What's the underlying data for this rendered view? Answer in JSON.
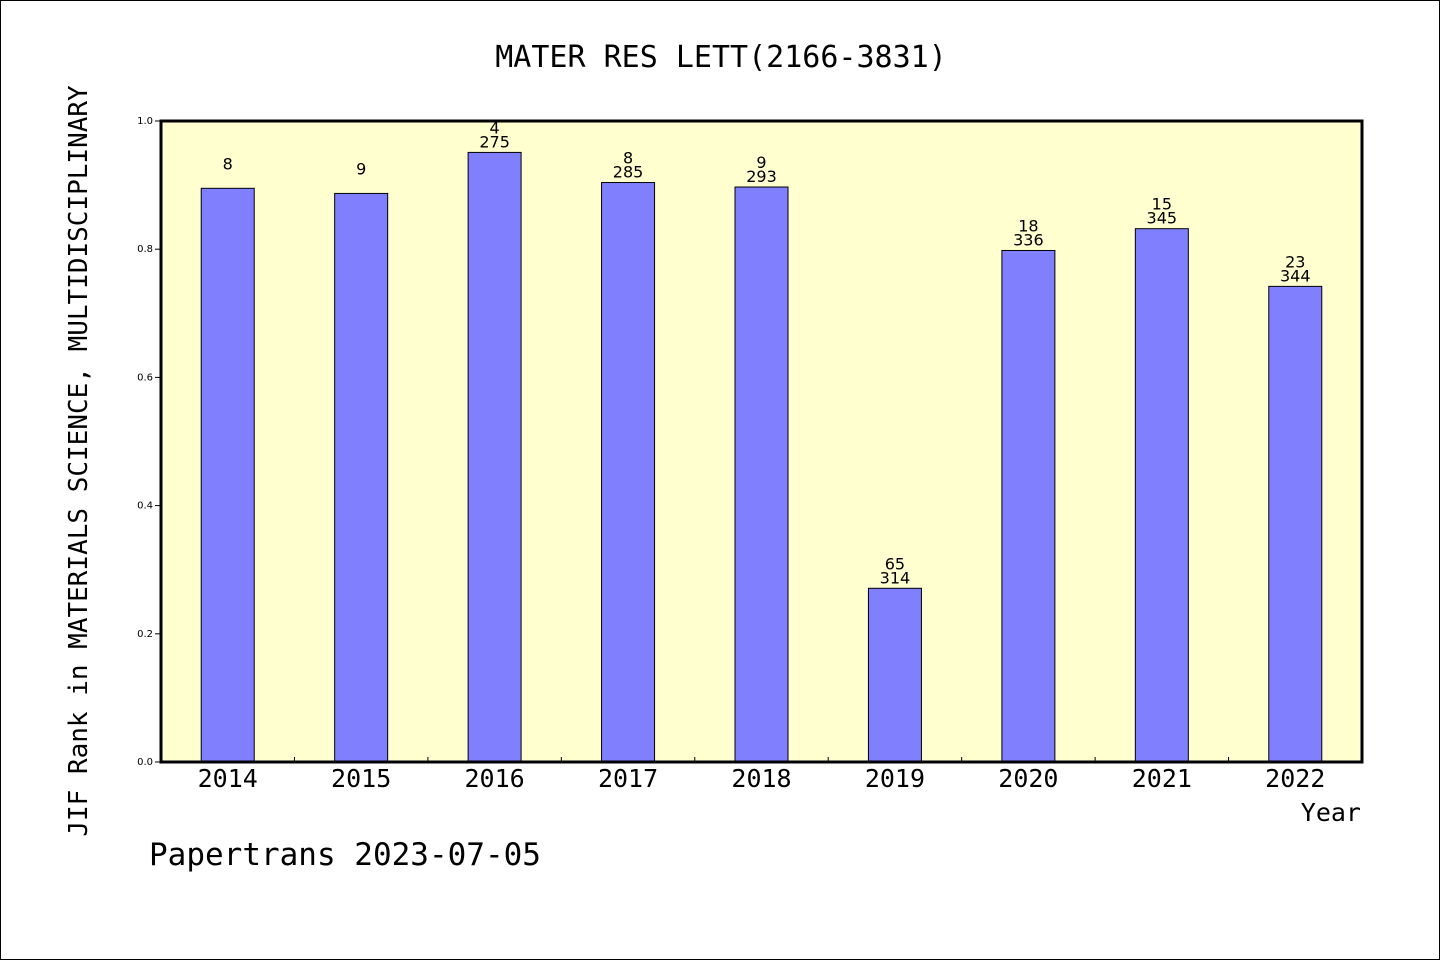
{
  "chart_data": {
    "type": "bar",
    "title": "MATER RES LETT(2166-3831)",
    "xlabel": "Year",
    "ylabel": "JIF Rank in MATERIALS SCIENCE, MULTIDISCIPLINARY",
    "ylim": [
      0,
      1
    ],
    "yticks": [
      "0.0",
      "0.2",
      "0.4",
      "0.6",
      "0.8",
      "1.0"
    ],
    "categories": [
      "2014",
      "2015",
      "2016",
      "2017",
      "2018",
      "2019",
      "2020",
      "2021",
      "2022"
    ],
    "values": [
      0.895,
      0.887,
      0.951,
      0.904,
      0.897,
      0.271,
      0.798,
      0.832,
      0.742
    ],
    "rank_labels": [
      "8",
      "9",
      "4",
      "8",
      "9",
      "65",
      "18",
      "15",
      "23"
    ],
    "total_labels": [
      "",
      "",
      "275",
      "285",
      "293",
      "314",
      "336",
      "345",
      "344"
    ],
    "grid": false,
    "bar_color": "#8080ff",
    "plot_background": "#ffffd0"
  },
  "footer": "Papertrans 2023-07-05"
}
